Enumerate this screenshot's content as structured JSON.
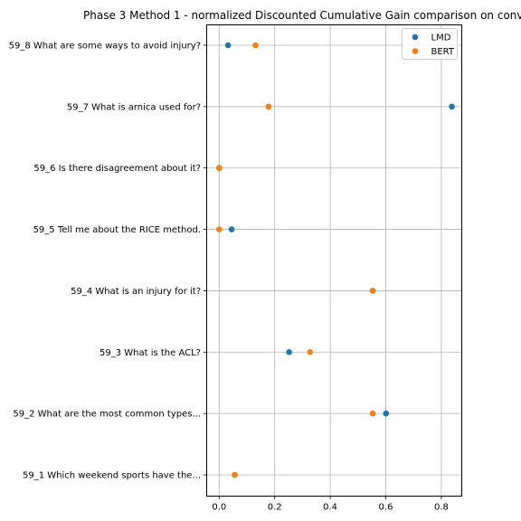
{
  "chart_data": {
    "type": "scatter",
    "title": "Phase 3 Method 1 - normalized Discounted Cumulative Gain comparison on conv",
    "xlabel": "",
    "ylabel": "",
    "xlim": [
      -0.04,
      0.88
    ],
    "x_ticks": [
      "0.0",
      "0.2",
      "0.4",
      "0.6",
      "0.8"
    ],
    "grid": true,
    "legend_position": "top-right",
    "categories": [
      "59_1 Which weekend sports have the...",
      "59_2 What are the most common types...",
      "59_3 What is the ACL?",
      "59_4 What is an injury for it?",
      "59_5 Tell me about the RICE method.",
      "59_6 Is there disagreement about it?",
      "59_7 What is arnica used for?",
      "59_8 What are some ways to avoid injury?"
    ],
    "series": [
      {
        "name": "LMD",
        "color": "#1f77b4",
        "values": [
          0.056,
          0.601,
          0.252,
          0.553,
          0.045,
          0.0,
          0.838,
          0.032
        ]
      },
      {
        "name": "BERT",
        "color": "#ff7f0e",
        "values": [
          0.056,
          0.553,
          0.327,
          0.553,
          0.0,
          0.0,
          0.178,
          0.131
        ]
      }
    ]
  }
}
